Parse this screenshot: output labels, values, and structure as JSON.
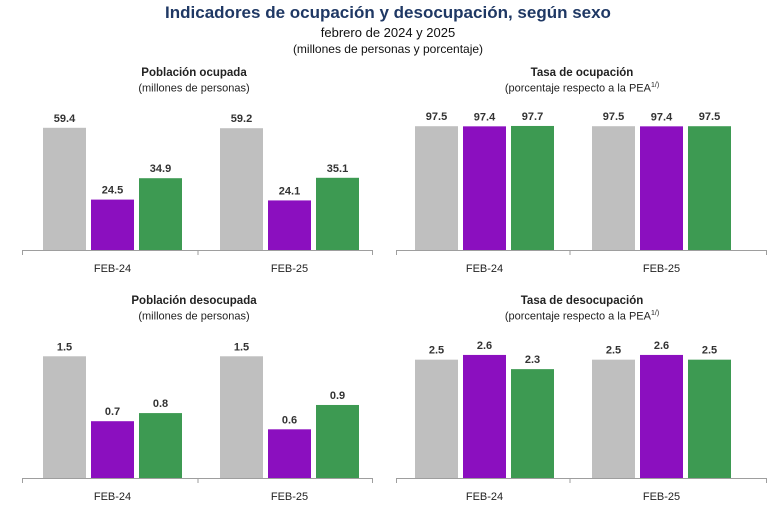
{
  "header": {
    "title": "Indicadores de ocupación y desocupación, según sexo",
    "subtitle": "febrero de 2024 y 2025",
    "units": "(millones de personas y porcentaje)"
  },
  "colors": {
    "total": "#bfbfbf",
    "mujeres": "#8b0fbf",
    "hombres": "#3d9a52",
    "axis": "#9e9e9e"
  },
  "chart_data": [
    {
      "type": "bar",
      "title": "Población ocupada",
      "subtitle": "(millones de personas)",
      "superscript": "",
      "categories": [
        "FEB-24",
        "FEB-25"
      ],
      "ylim": [
        0,
        70
      ],
      "series": [
        {
          "key": "total",
          "values": [
            59.4,
            59.2
          ]
        },
        {
          "key": "mujeres",
          "values": [
            24.5,
            24.1
          ]
        },
        {
          "key": "hombres",
          "values": [
            34.9,
            35.1
          ]
        }
      ]
    },
    {
      "type": "bar",
      "title": "Tasa de ocupación",
      "subtitle": "(porcentaje respecto a la PEA",
      "superscript": "1/)",
      "categories": [
        "FEB-24",
        "FEB-25"
      ],
      "ylim": [
        0,
        115
      ],
      "series": [
        {
          "key": "total",
          "values": [
            97.5,
            97.5
          ]
        },
        {
          "key": "mujeres",
          "values": [
            97.4,
            97.4
          ]
        },
        {
          "key": "hombres",
          "values": [
            97.7,
            97.5
          ]
        }
      ]
    },
    {
      "type": "bar",
      "title": "Población desocupada",
      "subtitle": "(millones de personas)",
      "superscript": "",
      "categories": [
        "FEB-24",
        "FEB-25"
      ],
      "ylim": [
        0,
        1.75
      ],
      "series": [
        {
          "key": "total",
          "values": [
            1.5,
            1.5
          ]
        },
        {
          "key": "mujeres",
          "values": [
            0.7,
            0.6
          ]
        },
        {
          "key": "hombres",
          "values": [
            0.8,
            0.9
          ]
        }
      ]
    },
    {
      "type": "bar",
      "title": "Tasa de desocupación",
      "subtitle": "(porcentaje respecto a la PEA",
      "superscript": "1/)",
      "categories": [
        "FEB-24",
        "FEB-25"
      ],
      "ylim": [
        0,
        3.0
      ],
      "series": [
        {
          "key": "total",
          "values": [
            2.5,
            2.5
          ]
        },
        {
          "key": "mujeres",
          "values": [
            2.6,
            2.6
          ]
        },
        {
          "key": "hombres",
          "values": [
            2.3,
            2.5
          ]
        }
      ]
    }
  ]
}
